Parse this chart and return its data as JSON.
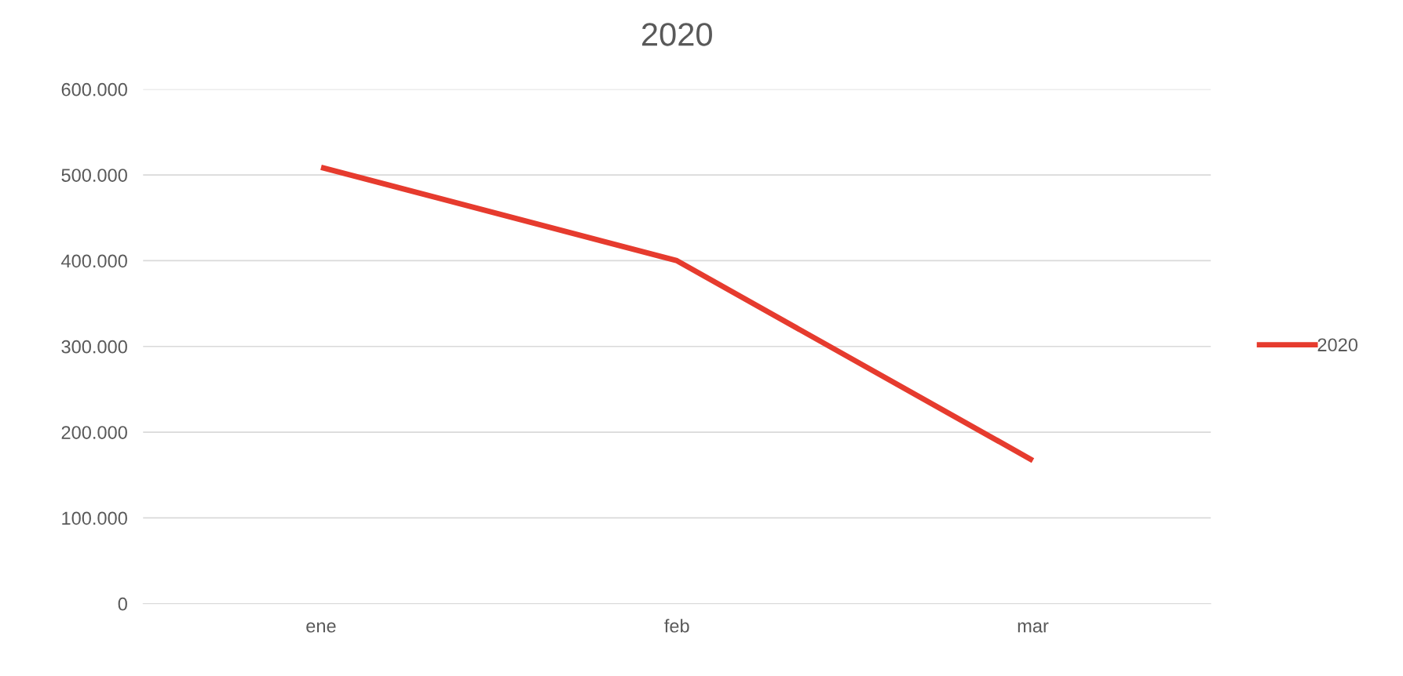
{
  "chart_data": {
    "type": "line",
    "title": "2020",
    "categories": [
      "ene",
      "feb",
      "mar"
    ],
    "series": [
      {
        "name": "2020",
        "color": "#e63b2e",
        "values": [
          509000,
          400000,
          167000
        ]
      }
    ],
    "ylim": [
      0,
      600000
    ],
    "yticks": [
      {
        "value": 0,
        "label": "0"
      },
      {
        "value": 100000,
        "label": "100.000"
      },
      {
        "value": 200000,
        "label": "200.000"
      },
      {
        "value": 300000,
        "label": "300.000"
      },
      {
        "value": 400000,
        "label": "400.000"
      },
      {
        "value": 500000,
        "label": "500.000"
      },
      {
        "value": 600000,
        "label": "600.000"
      }
    ],
    "grid": "y",
    "legend": "right",
    "marker": "none",
    "line_style": "solid"
  }
}
